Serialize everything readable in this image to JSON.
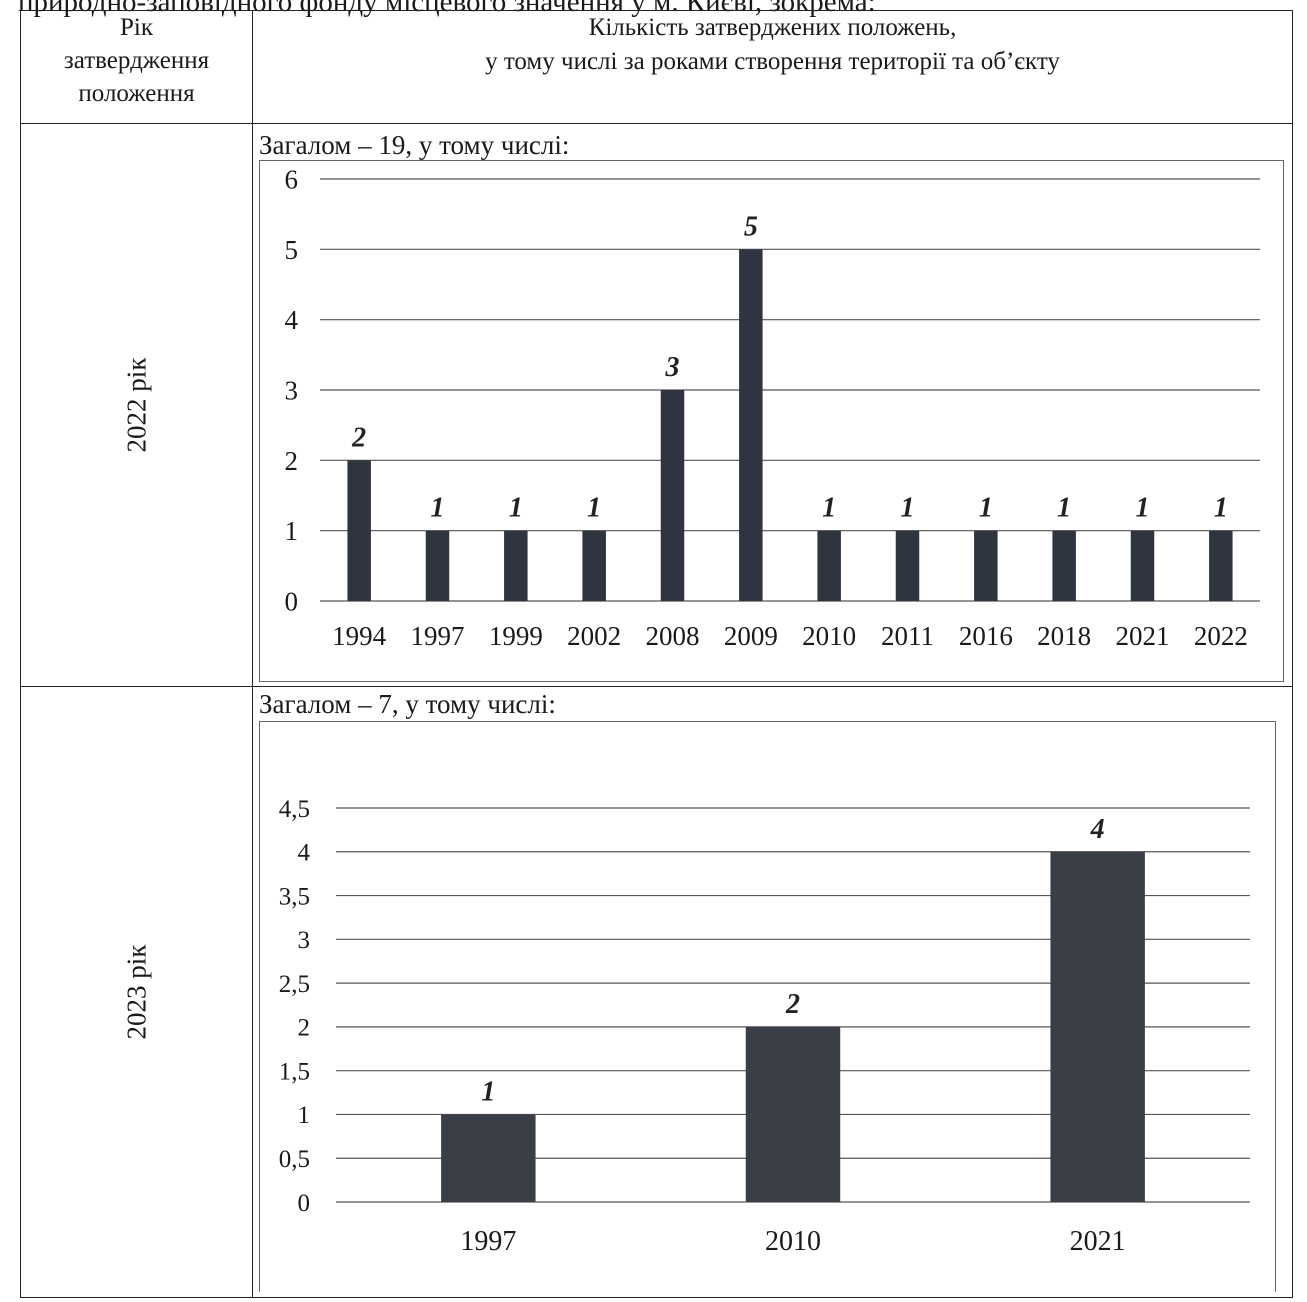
{
  "intro_fragment": "природно-заповідного фонду місцевого значення у м. Києві, зокрема:",
  "table": {
    "header_year": [
      "Рік",
      "затвердження",
      "положення"
    ],
    "header_main": [
      "Кількість затверджених положень,",
      "у тому числі за роками створення території та об’єкту"
    ],
    "row_2022": {
      "label": "2022 рік",
      "caption": "Загалом – 19, у тому числі:"
    },
    "row_2023": {
      "label": "2023 рік",
      "caption": "Загалом – 7, у тому числі:"
    }
  },
  "chart_data": [
    {
      "type": "bar",
      "categories": [
        "1994",
        "1997",
        "1999",
        "2002",
        "2008",
        "2009",
        "2010",
        "2011",
        "2016",
        "2018",
        "2021",
        "2022"
      ],
      "values": [
        2,
        1,
        1,
        1,
        3,
        5,
        1,
        1,
        1,
        1,
        1,
        1
      ],
      "data_labels": [
        "2",
        "1",
        "1",
        "1",
        "3",
        "5",
        "1",
        "1",
        "1",
        "1",
        "1",
        "1"
      ],
      "yticks": [
        "0",
        "1",
        "2",
        "3",
        "4",
        "5",
        "6"
      ],
      "ylim": [
        0,
        6
      ],
      "grid": true,
      "bar_color": "#2f3540"
    },
    {
      "type": "bar",
      "categories": [
        "1997",
        "2010",
        "2021"
      ],
      "values": [
        1,
        2,
        4
      ],
      "data_labels": [
        "1",
        "2",
        "4"
      ],
      "yticks": [
        "0",
        "0,5",
        "1",
        "1,5",
        "2",
        "2,5",
        "3",
        "3,5",
        "4",
        "4,5"
      ],
      "ylim": [
        0,
        4.5
      ],
      "grid": true,
      "bar_color": "#3a3f47"
    }
  ]
}
